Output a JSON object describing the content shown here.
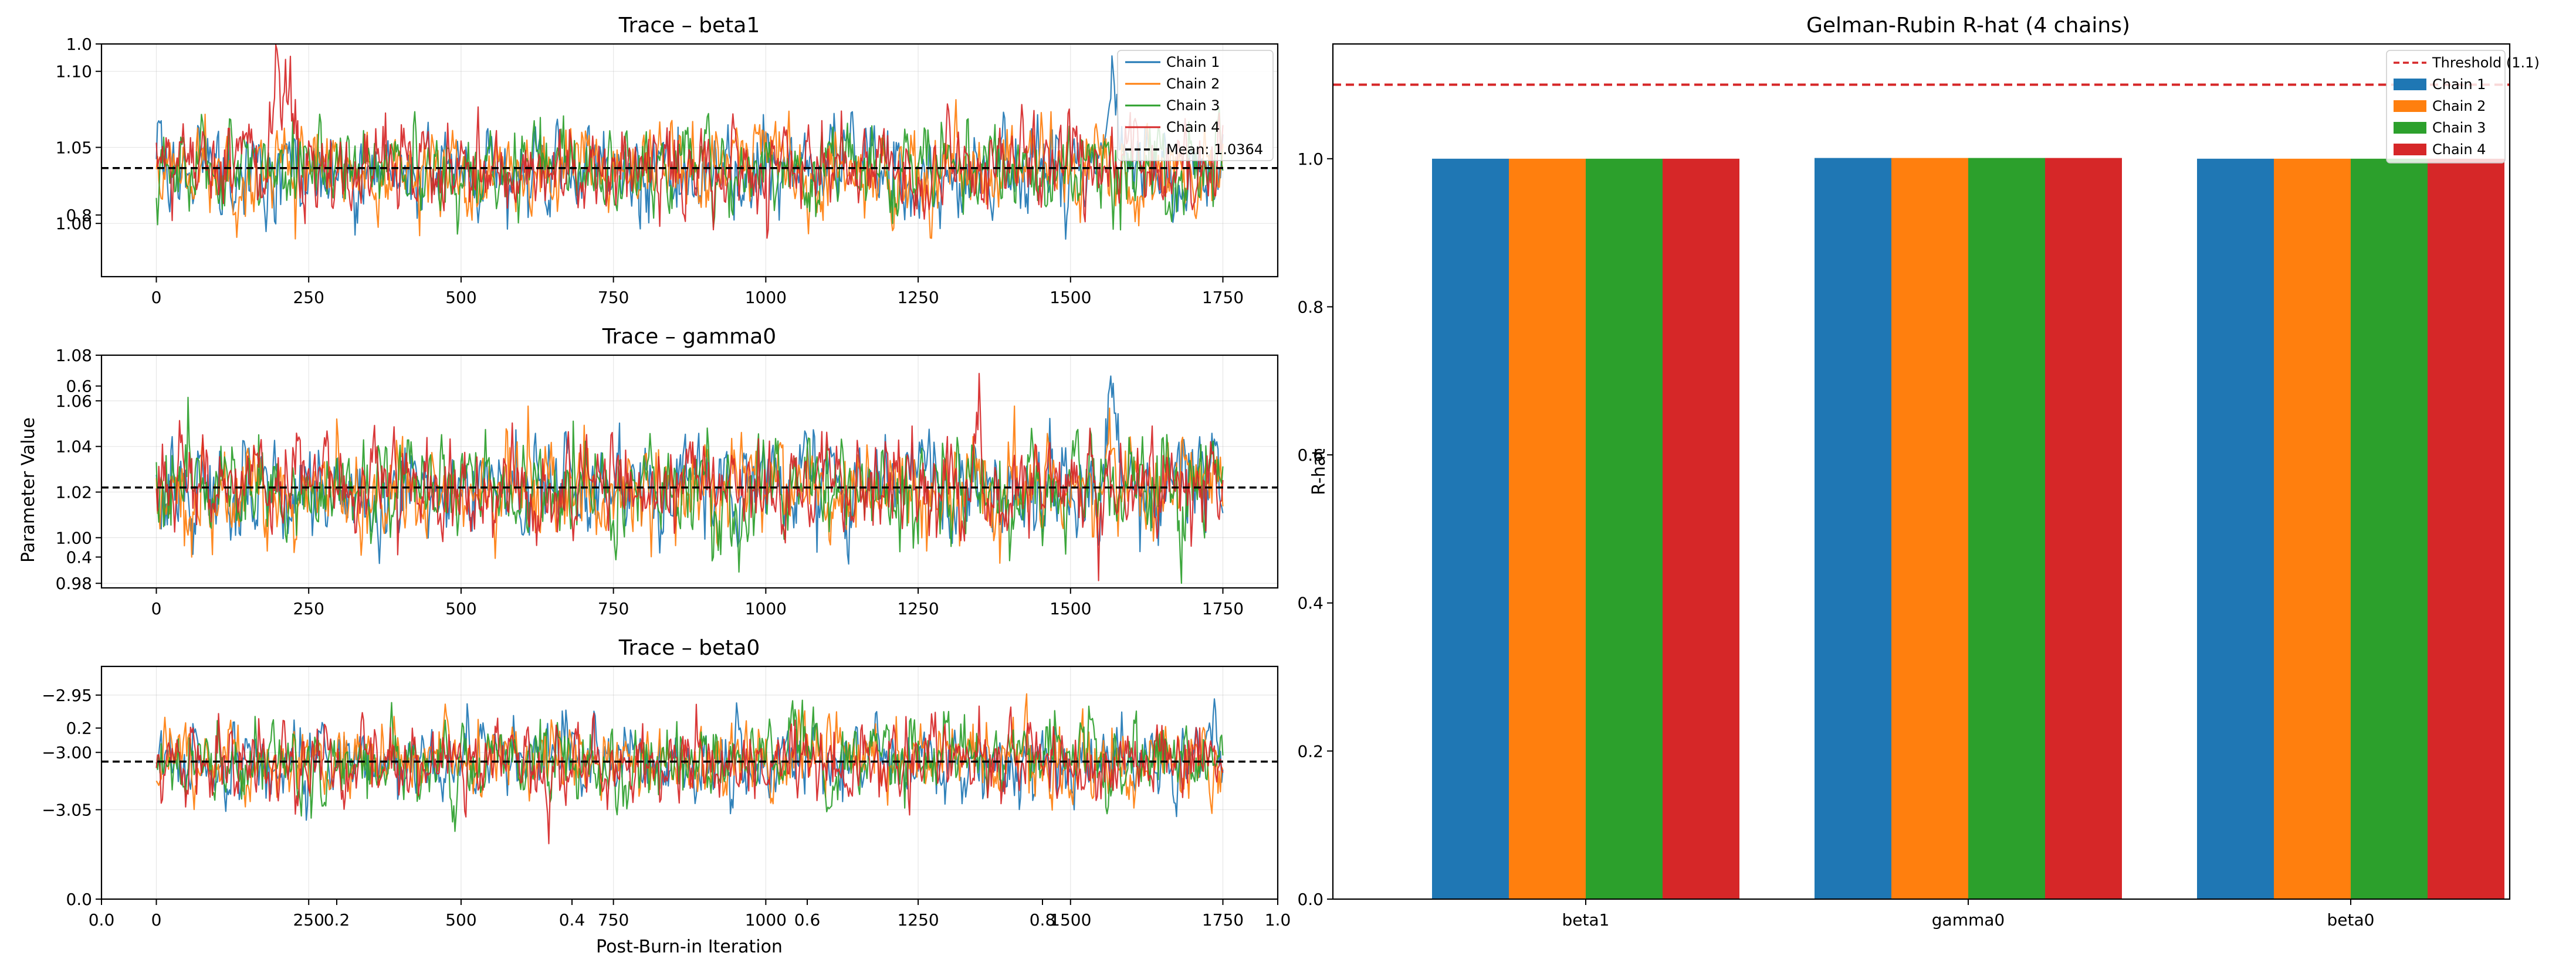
{
  "colors": {
    "chain1": "#1f77b4",
    "chain2": "#ff7f0e",
    "chain3": "#2ca02c",
    "chain4": "#d62728",
    "mean_line": "#000000",
    "threshold_line": "#d62728"
  },
  "chart_data": [
    {
      "type": "line",
      "title": "Trace – beta1",
      "xlabel": "",
      "ylabel": "",
      "xlim": [
        -90,
        1840
      ],
      "ylim": [
        0.965,
        1.118
      ],
      "xticks": [
        0,
        250,
        500,
        750,
        1000,
        1250,
        1500,
        1750
      ],
      "yticks": [
        1.0,
        1.05,
        1.1
      ],
      "ytick_labels": [
        "1.00",
        "1.05",
        "1.10"
      ],
      "overlay_yticks": [
        0.8,
        1.0
      ],
      "overlay_ytick_labels": [
        "0.8",
        "1.0"
      ],
      "grid": true,
      "n_iterations": 1750,
      "mean": 1.0364,
      "series": [
        {
          "name": "Chain 1",
          "mean": 1.034,
          "sd": 0.015,
          "peak": [
            1570,
            1.094
          ]
        },
        {
          "name": "Chain 2",
          "mean": 1.035,
          "sd": 0.015
        },
        {
          "name": "Chain 3",
          "mean": 1.037,
          "sd": 0.015
        },
        {
          "name": "Chain 4",
          "mean": 1.037,
          "sd": 0.015,
          "peak": [
            207,
            1.113
          ]
        }
      ],
      "legend": {
        "position": "upper-right",
        "entries": [
          "Chain 1",
          "Chain 2",
          "Chain 3",
          "Chain 4",
          "Mean: 1.0364"
        ]
      }
    },
    {
      "type": "line",
      "title": "Trace – gamma0",
      "xlabel": "",
      "ylabel": "Parameter Value",
      "xlim": [
        -90,
        1840
      ],
      "ylim": [
        0.978,
        1.08
      ],
      "xticks": [
        0,
        250,
        500,
        750,
        1000,
        1250,
        1500,
        1750
      ],
      "yticks": [
        0.98,
        1.0,
        1.02,
        1.04,
        1.06,
        1.08
      ],
      "ytick_labels": [
        "0.98",
        "1.00",
        "1.02",
        "1.04",
        "1.06",
        "1.08"
      ],
      "overlay_yticks": [
        0.4,
        0.6
      ],
      "overlay_ytick_labels": [
        "0.4",
        "0.6"
      ],
      "grid": true,
      "n_iterations": 1750,
      "mean": 1.022,
      "series": [
        {
          "name": "Chain 1",
          "mean": 1.021,
          "sd": 0.011,
          "peak": [
            1570,
            1.072
          ]
        },
        {
          "name": "Chain 2",
          "mean": 1.022,
          "sd": 0.011
        },
        {
          "name": "Chain 3",
          "mean": 1.023,
          "sd": 0.011
        },
        {
          "name": "Chain 4",
          "mean": 1.022,
          "sd": 0.011
        }
      ]
    },
    {
      "type": "line",
      "title": "Trace – beta0",
      "xlabel": "Post-Burn-in Iteration",
      "ylabel": "",
      "xlim": [
        -90,
        1840
      ],
      "ylim": [
        -3.128,
        -2.925
      ],
      "xticks": [
        0,
        250,
        500,
        750,
        1000,
        1250,
        1500,
        1750
      ],
      "yticks": [
        -3.05,
        -3.0,
        -2.95
      ],
      "ytick_labels": [
        "−3.05",
        "−3.00",
        "−2.95"
      ],
      "overlay_xticks": [
        0.0,
        0.2,
        0.4,
        0.6,
        0.8,
        1.0
      ],
      "overlay_xtick_labels": [
        "0.0",
        "0.2",
        "0.4",
        "0.6",
        "0.8",
        "1.0"
      ],
      "overlay_yticks": [
        0.0,
        0.2
      ],
      "overlay_ytick_labels": [
        "0.0",
        "0.2"
      ],
      "grid": true,
      "n_iterations": 1750,
      "mean": -3.008,
      "series": [
        {
          "name": "Chain 1",
          "mean": -3.008,
          "sd": 0.017
        },
        {
          "name": "Chain 2",
          "mean": -3.008,
          "sd": 0.017
        },
        {
          "name": "Chain 3",
          "mean": -3.008,
          "sd": 0.017
        },
        {
          "name": "Chain 4",
          "mean": -3.008,
          "sd": 0.017
        }
      ]
    },
    {
      "type": "bar",
      "title": "Gelman-Rubin R-hat (4 chains)",
      "xlabel": "",
      "ylabel": "R-hat",
      "categories": [
        "beta1",
        "gamma0",
        "beta0"
      ],
      "ylim": [
        0,
        1.155
      ],
      "yticks": [
        0.0,
        0.2,
        0.4,
        0.6,
        0.8,
        1.0
      ],
      "ytick_labels": [
        "0.0",
        "0.2",
        "0.4",
        "0.6",
        "0.8",
        "1.0"
      ],
      "grid": false,
      "threshold": 1.1,
      "series": [
        {
          "name": "Chain 1",
          "values": [
            1.0,
            1.001,
            1.0
          ]
        },
        {
          "name": "Chain 2",
          "values": [
            1.0,
            1.001,
            1.0
          ]
        },
        {
          "name": "Chain 3",
          "values": [
            1.0,
            1.001,
            1.0
          ]
        },
        {
          "name": "Chain 4",
          "values": [
            1.0,
            1.001,
            1.0
          ]
        }
      ],
      "legend": {
        "position": "upper-right",
        "entries": [
          "Threshold (1.1)",
          "Chain 1",
          "Chain 2",
          "Chain 3",
          "Chain 4"
        ]
      }
    }
  ]
}
